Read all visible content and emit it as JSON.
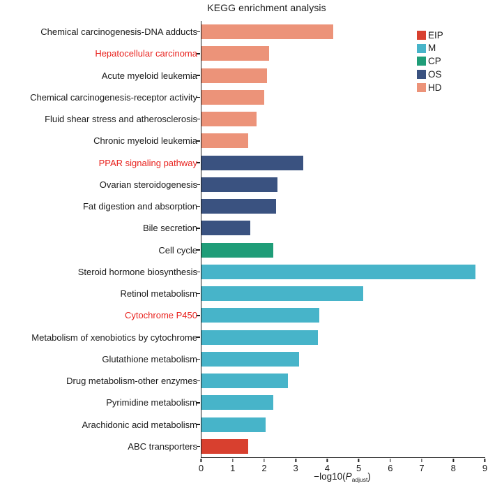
{
  "chart_data": {
    "type": "bar",
    "orientation": "horizontal",
    "title": "KEGG enrichment analysis",
    "xlabel": {
      "prefix": "−log10(",
      "p": "P",
      "sub": "adjust",
      "suffix": ")"
    },
    "xlim": [
      0,
      9
    ],
    "x_ticks": [
      0,
      1,
      2,
      3,
      4,
      5,
      6,
      7,
      8,
      9
    ],
    "grid": false,
    "legend": {
      "position": "top-right",
      "entries": [
        {
          "label": "EIP",
          "color": "#d8402f"
        },
        {
          "label": "M",
          "color": "#47b4c9"
        },
        {
          "label": "CP",
          "color": "#1f9d78"
        },
        {
          "label": "OS",
          "color": "#3a5280"
        },
        {
          "label": "HD",
          "color": "#ec9379"
        }
      ]
    },
    "group_colors": {
      "EIP": "#d8402f",
      "M": "#47b4c9",
      "CP": "#1f9d78",
      "OS": "#3a5280",
      "HD": "#ec9379"
    },
    "red_label_color": "#e8211d",
    "bars": [
      {
        "label": "Chemical carcinogenesis-DNA adducts",
        "value": 4.2,
        "group": "HD",
        "label_red": false
      },
      {
        "label": "Hepatocellular carcinoma",
        "value": 2.15,
        "group": "HD",
        "label_red": true
      },
      {
        "label": "Acute myeloid leukemia",
        "value": 2.1,
        "group": "HD",
        "label_red": false
      },
      {
        "label": "Chemical carcinogenesis-receptor activity",
        "value": 2.0,
        "group": "HD",
        "label_red": false
      },
      {
        "label": "Fluid shear stress and atherosclerosis",
        "value": 1.75,
        "group": "HD",
        "label_red": false
      },
      {
        "label": "Chronic myeloid leukemia",
        "value": 1.5,
        "group": "HD",
        "label_red": false
      },
      {
        "label": "PPAR signaling pathway",
        "value": 3.25,
        "group": "OS",
        "label_red": true
      },
      {
        "label": "Ovarian steroidogenesis",
        "value": 2.42,
        "group": "OS",
        "label_red": false
      },
      {
        "label": "Fat digestion and absorption",
        "value": 2.38,
        "group": "OS",
        "label_red": false
      },
      {
        "label": "Bile secretion",
        "value": 1.55,
        "group": "OS",
        "label_red": false
      },
      {
        "label": "Cell cycle",
        "value": 2.28,
        "group": "CP",
        "label_red": false
      },
      {
        "label": "Steroid hormone biosynthesis",
        "value": 8.7,
        "group": "M",
        "label_red": false
      },
      {
        "label": "Retinol metabolism",
        "value": 5.15,
        "group": "M",
        "label_red": false
      },
      {
        "label": "Cytochrome P450",
        "value": 3.75,
        "group": "M",
        "label_red": true
      },
      {
        "label": "Metabolism of xenobiotics by cytochrome",
        "value": 3.7,
        "group": "M",
        "label_red": false
      },
      {
        "label": "Glutathione metabolism",
        "value": 3.1,
        "group": "M",
        "label_red": false
      },
      {
        "label": "Drug metabolism-other enzymes",
        "value": 2.75,
        "group": "M",
        "label_red": false
      },
      {
        "label": "Pyrimidine metabolism",
        "value": 2.28,
        "group": "M",
        "label_red": false
      },
      {
        "label": "Arachidonic acid metabolism",
        "value": 2.05,
        "group": "M",
        "label_red": false
      },
      {
        "label": "ABC transporters",
        "value": 1.5,
        "group": "EIP",
        "label_red": false
      }
    ]
  }
}
